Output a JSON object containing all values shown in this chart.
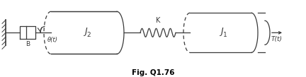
{
  "fig_label": "Fig. Q1.76",
  "bg_color": "#ffffff",
  "line_color": "#3a3a3a",
  "spring_color": "#3a3a3a",
  "figsize": [
    4.32,
    1.09
  ],
  "dpi": 100,
  "B_label": "B",
  "theta_label": "θ(t)",
  "J2_label": "J",
  "J2_sub": "2",
  "J1_label": "J",
  "J1_sub": "1",
  "K_label": "K",
  "T_label": "T(t)"
}
